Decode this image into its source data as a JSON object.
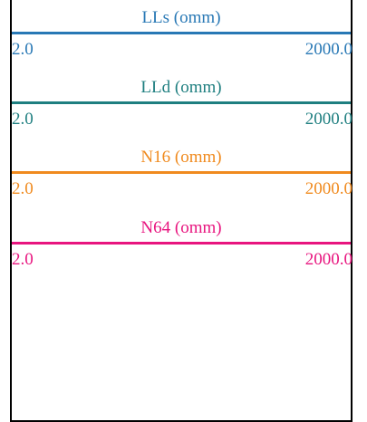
{
  "chart_data": {
    "type": "table",
    "tracks": [
      {
        "name": "LLs (omm)",
        "min": "2.0",
        "max": "2000.0",
        "color": "#2878b5",
        "scale": "log"
      },
      {
        "name": "LLd (omm)",
        "min": "2.0",
        "max": "2000.0",
        "color": "#1f7f80",
        "scale": "log"
      },
      {
        "name": "N16 (omm)",
        "min": "2.0",
        "max": "2000.0",
        "color": "#f08a1e",
        "scale": "log"
      },
      {
        "name": "N64 (omm)",
        "min": "2.0",
        "max": "2000.0",
        "color": "#e8157f",
        "scale": "log"
      }
    ]
  }
}
